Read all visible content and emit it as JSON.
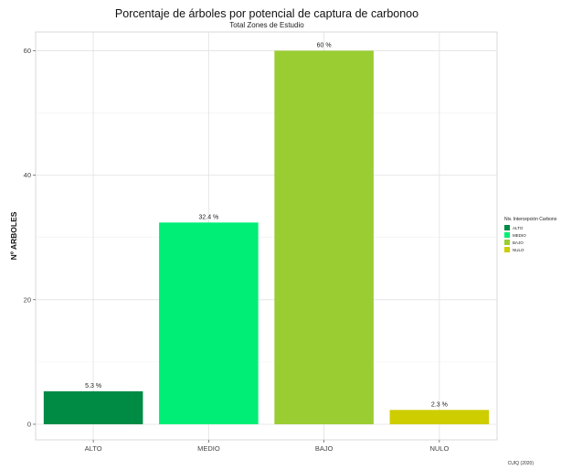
{
  "chart_data": {
    "type": "bar",
    "title": "Porcentaje de árboles por potencial de captura de carbonoo",
    "subtitle": "Total Zones de Estudio",
    "xlabel": "",
    "ylabel": "Nº ARBOLES",
    "categories": [
      "ALTO",
      "MEDIO",
      "BAJO",
      "NULO"
    ],
    "values": [
      5.3,
      32.4,
      60,
      2.3
    ],
    "data_labels": [
      "5.3 %",
      "32.4 %",
      "60 %",
      "2.3 %"
    ],
    "colors": [
      "#008b45",
      "#00ee76",
      "#9acd32",
      "#cdcd00"
    ],
    "ylim": [
      -2.5,
      63
    ],
    "yticks": [
      0,
      20,
      40,
      60
    ],
    "grid": true,
    "legend": {
      "title": "Niv. Intercepción Carbono",
      "position": "right",
      "entries": [
        "ALTO",
        "MEDIO",
        "BAJO",
        "NULO"
      ]
    },
    "caption": "CUIQ (2020)"
  }
}
